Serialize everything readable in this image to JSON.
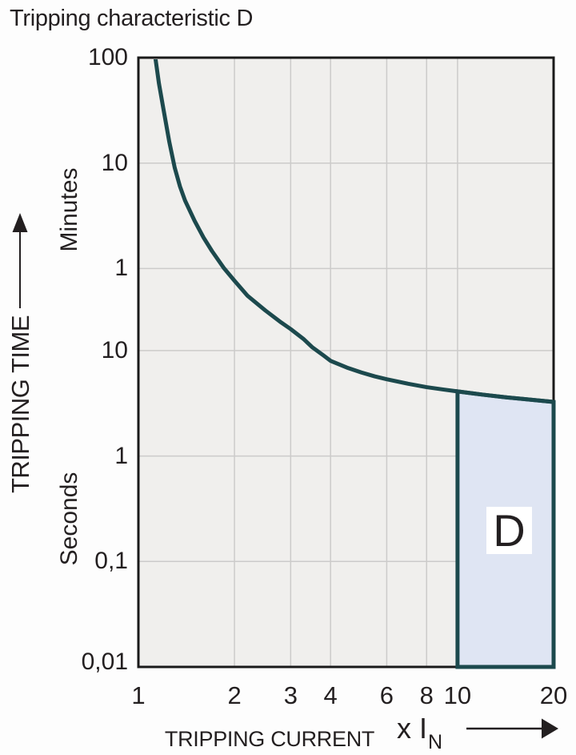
{
  "title": "Tripping characteristic D",
  "colors": {
    "curve": "#1c494d",
    "region_fill": "#dfe5f3",
    "region_border": "#1c494d",
    "plot_bg": "#f0efed",
    "grid": "#cccbca",
    "axis_border": "#1a1a1a",
    "text": "#231f20",
    "page_bg": "#fdfdfd"
  },
  "chart_data": {
    "type": "line",
    "title": "Tripping characteristic D",
    "grid": "on",
    "x_axis": {
      "label": "TRIPPING CURRENT",
      "unit_prefix": "x I",
      "unit_subscript": "N",
      "scale": "log",
      "min": 1,
      "max": 20,
      "ticks": [
        {
          "label": "1",
          "v": 1
        },
        {
          "label": "2",
          "v": 2
        },
        {
          "label": "3",
          "v": 3
        },
        {
          "label": "4",
          "v": 4
        },
        {
          "label": "6",
          "v": 6
        },
        {
          "label": "8",
          "v": 8
        },
        {
          "label": "10",
          "v": 10
        },
        {
          "label": "20",
          "v": 20
        }
      ]
    },
    "y_axis": {
      "label": "TRIPPING TIME",
      "scale": "log",
      "min_seconds": 0.01,
      "max_seconds": 6000,
      "unit_upper": "Minutes",
      "unit_lower": "Seconds",
      "ticks": [
        {
          "label": "100",
          "seconds": 6000
        },
        {
          "label": "10",
          "seconds": 600
        },
        {
          "label": "1",
          "seconds": 60
        },
        {
          "label": "10",
          "seconds": 10
        },
        {
          "label": "1",
          "seconds": 1
        },
        {
          "label": "0,1",
          "seconds": 0.1
        },
        {
          "label": "0,01",
          "seconds": 0.01
        }
      ]
    },
    "gridlines": {
      "x_values": [
        2,
        3,
        4,
        6,
        8,
        10
      ],
      "y_seconds": [
        600,
        60,
        10,
        1,
        0.1
      ]
    },
    "series": [
      {
        "name": "tripping-time-curve",
        "points": [
          [
            1.13,
            6000
          ],
          [
            1.16,
            3400
          ],
          [
            1.2,
            1900
          ],
          [
            1.25,
            950
          ],
          [
            1.3,
            540
          ],
          [
            1.35,
            360
          ],
          [
            1.4,
            265
          ],
          [
            1.5,
            170
          ],
          [
            1.6,
            118
          ],
          [
            1.7,
            88
          ],
          [
            1.85,
            61
          ],
          [
            2.0,
            46
          ],
          [
            2.2,
            33
          ],
          [
            2.5,
            24
          ],
          [
            2.8,
            18.5
          ],
          [
            3.0,
            16
          ],
          [
            3.3,
            12.8
          ],
          [
            3.5,
            10.8
          ],
          [
            3.8,
            9.0
          ],
          [
            4.0,
            8.0
          ],
          [
            4.5,
            6.9
          ],
          [
            5.0,
            6.2
          ],
          [
            5.5,
            5.7
          ],
          [
            6.0,
            5.35
          ],
          [
            7.0,
            4.85
          ],
          [
            8.0,
            4.5
          ],
          [
            9.0,
            4.28
          ],
          [
            10.0,
            4.1
          ],
          [
            11.0,
            3.95
          ],
          [
            12.0,
            3.82
          ],
          [
            14.0,
            3.62
          ],
          [
            16.0,
            3.48
          ],
          [
            18.0,
            3.36
          ],
          [
            20.0,
            3.26
          ]
        ]
      }
    ],
    "region": {
      "label": "D",
      "x_from": 10,
      "x_to": 20,
      "bottom_seconds": 0.01
    }
  }
}
